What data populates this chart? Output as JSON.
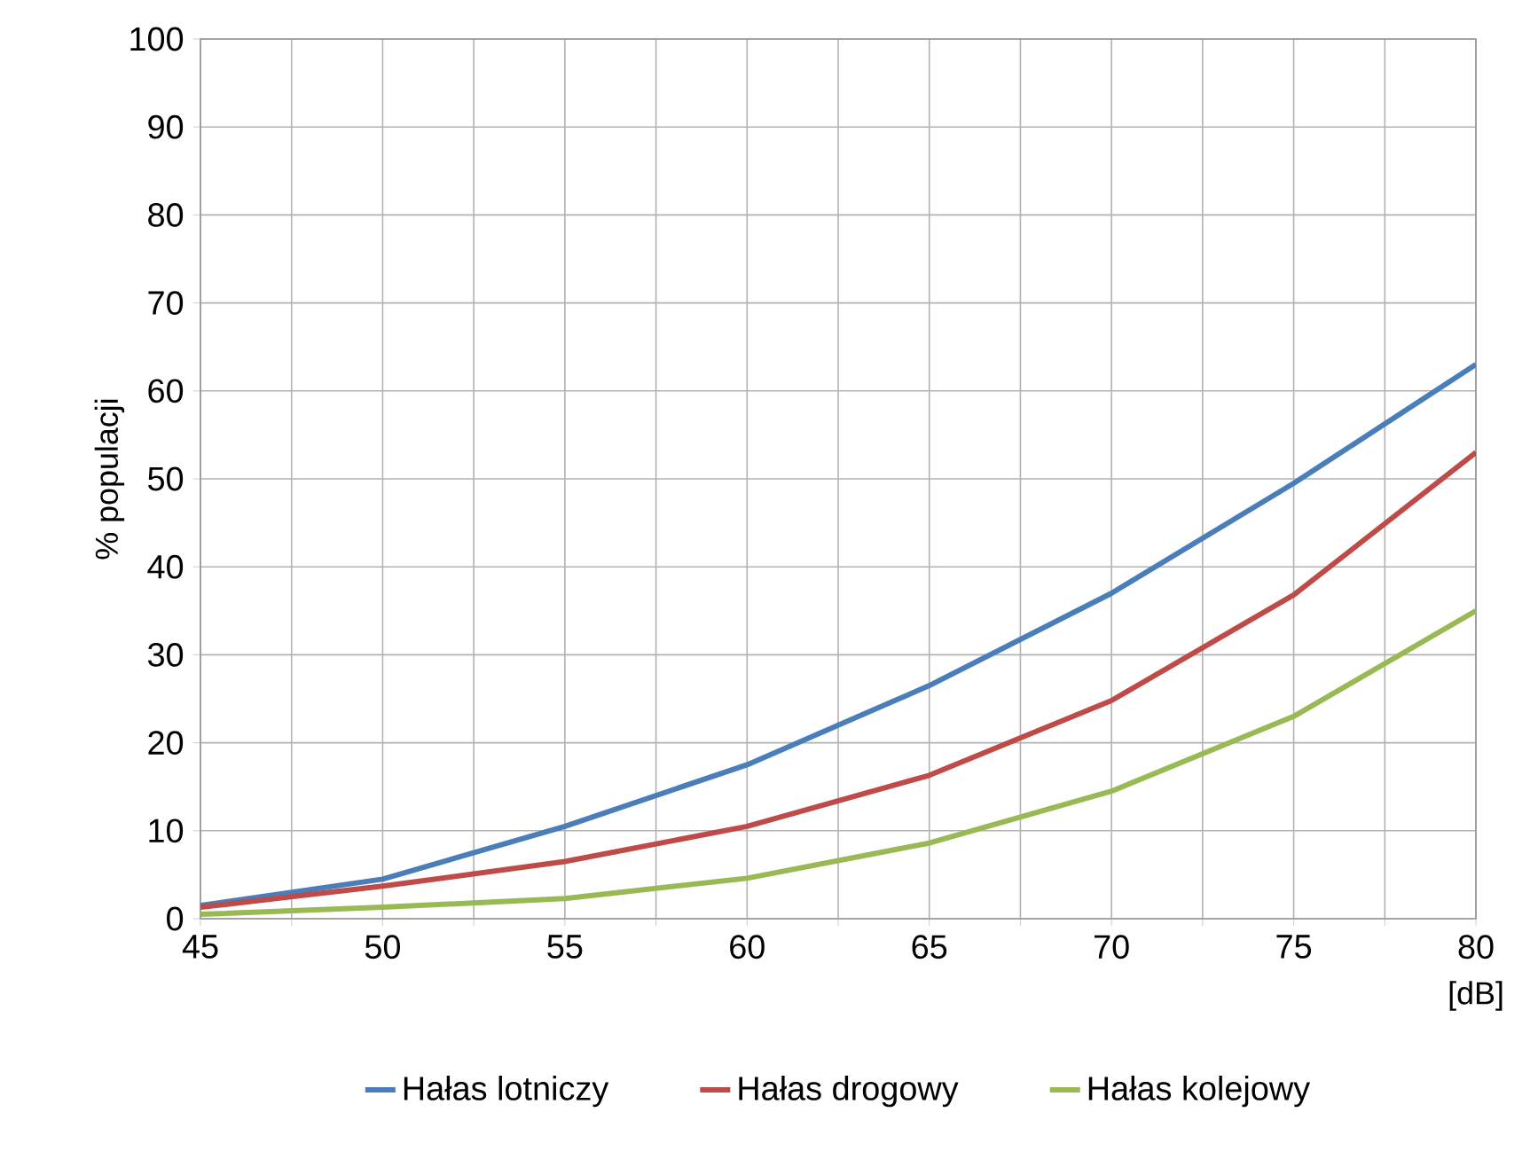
{
  "chart_data": {
    "type": "line",
    "xlabel": "[dB]",
    "ylabel": "% populacji",
    "x": [
      45,
      50,
      55,
      60,
      65,
      70,
      75,
      80
    ],
    "series": [
      {
        "name": "Hałas lotniczy",
        "color": "#4a7ebb",
        "values": [
          1.5,
          4.5,
          10.5,
          17.5,
          26.5,
          37,
          49.5,
          63
        ]
      },
      {
        "name": "Hałas drogowy",
        "color": "#be4b48",
        "values": [
          1.3,
          3.7,
          6.5,
          10.5,
          16.3,
          24.8,
          36.8,
          53
        ]
      },
      {
        "name": "Hałas kolejowy",
        "color": "#98b954",
        "values": [
          0.5,
          1.3,
          2.3,
          4.6,
          8.6,
          14.5,
          23,
          35
        ]
      }
    ],
    "xlim": [
      45,
      80
    ],
    "xticks": [
      45,
      {
        "value": 47.5,
        "label": null
      },
      50,
      {
        "value": 52.5,
        "label": null
      },
      55,
      {
        "value": 57.5,
        "label": null
      },
      60,
      {
        "value": 62.5,
        "label": null
      },
      65,
      {
        "value": 67.5,
        "label": null
      },
      70,
      {
        "value": 72.5,
        "label": null
      },
      75,
      {
        "value": 77.5,
        "label": null
      },
      80
    ],
    "ylim": [
      0,
      100
    ],
    "yticks": [
      0,
      10,
      20,
      30,
      40,
      50,
      60,
      70,
      80,
      90,
      100
    ],
    "grid": true,
    "legend": "bottom",
    "marker": "none",
    "line_style": "solid"
  }
}
